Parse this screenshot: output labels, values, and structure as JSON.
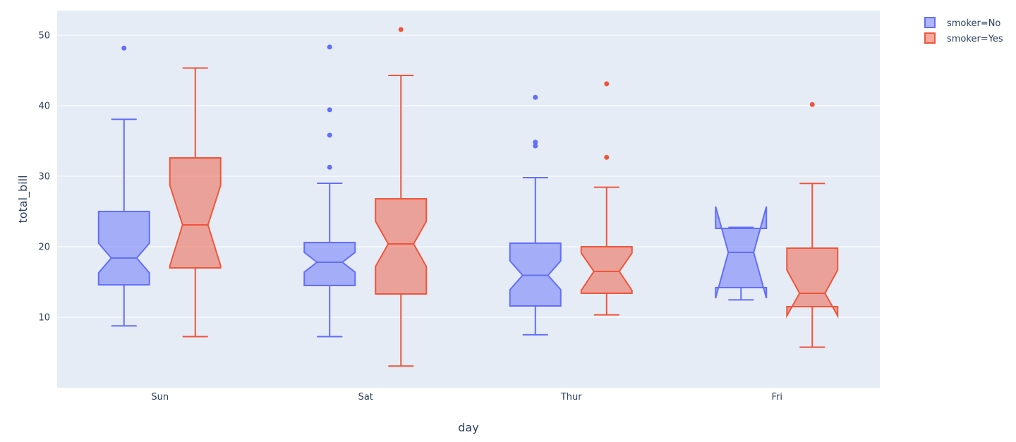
{
  "chart_data": {
    "type": "box",
    "notched": true,
    "xlabel": "day",
    "ylabel": "total_bill",
    "categories": [
      "Sun",
      "Sat",
      "Thur",
      "Fri"
    ],
    "ylim": [
      0,
      53.5
    ],
    "yticks": [
      10,
      20,
      30,
      40,
      50
    ],
    "grid": true,
    "legend_position": "top-right",
    "series": [
      {
        "name": "smoker=No",
        "color": "#636efa",
        "fill": "rgba(99,110,250,0.5)",
        "boxes": [
          {
            "category": "Sun",
            "min": 8.77,
            "q1": 14.6,
            "median": 18.4,
            "q3": 25.0,
            "max": 38.07,
            "notch_low": 16.3,
            "notch_high": 20.5,
            "outliers": [
              48.17
            ]
          },
          {
            "category": "Sat",
            "min": 7.25,
            "q1": 14.5,
            "median": 17.8,
            "q3": 20.6,
            "max": 29.0,
            "notch_low": 16.4,
            "notch_high": 19.2,
            "outliers": [
              48.33,
              39.42,
              35.83,
              31.27
            ]
          },
          {
            "category": "Thur",
            "min": 7.51,
            "q1": 11.6,
            "median": 15.95,
            "q3": 20.5,
            "max": 29.8,
            "notch_low": 13.9,
            "notch_high": 18.0,
            "outliers": [
              41.19,
              34.83,
              34.3
            ]
          },
          {
            "category": "Fri",
            "min": 12.46,
            "q1": 14.2,
            "median": 19.2,
            "q3": 22.6,
            "max": 22.75,
            "notch_low": 12.7,
            "notch_high": 25.7,
            "outliers": []
          }
        ]
      },
      {
        "name": "smoker=Yes",
        "color": "#ef553b",
        "fill": "rgba(239,85,59,0.5)",
        "boxes": [
          {
            "category": "Sun",
            "min": 7.25,
            "q1": 17.0,
            "median": 23.1,
            "q3": 32.6,
            "max": 45.35,
            "notch_low": 17.3,
            "notch_high": 28.7,
            "outliers": []
          },
          {
            "category": "Sat",
            "min": 3.07,
            "q1": 13.3,
            "median": 20.4,
            "q3": 26.8,
            "max": 44.3,
            "notch_low": 17.2,
            "notch_high": 23.6,
            "outliers": [
              50.81
            ]
          },
          {
            "category": "Thur",
            "min": 10.34,
            "q1": 13.4,
            "median": 16.5,
            "q3": 20.0,
            "max": 28.44,
            "notch_low": 13.8,
            "notch_high": 19.1,
            "outliers": [
              43.11,
              32.68
            ]
          },
          {
            "category": "Fri",
            "min": 5.75,
            "q1": 11.5,
            "median": 13.4,
            "q3": 19.8,
            "max": 28.97,
            "notch_low": 10.2,
            "notch_high": 16.7,
            "outliers": [
              40.17
            ]
          }
        ]
      }
    ]
  }
}
